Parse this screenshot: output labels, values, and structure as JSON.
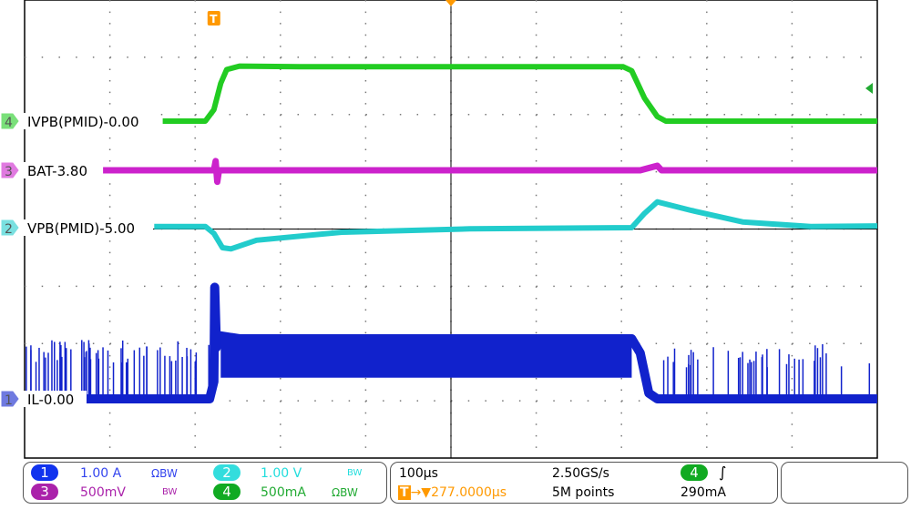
{
  "chart_data": {
    "type": "line",
    "time_unit": "µs",
    "xlim": [
      -222,
      778
    ],
    "x_divisions": 10,
    "y_divisions": 8,
    "grid": true,
    "trigger_time": 0,
    "series": [
      {
        "channel": "4",
        "name": "IVPB(PMID)",
        "label": "IVPB(PMID)-0.00",
        "unit": "mA",
        "scale_per_div": 500,
        "offset": 0,
        "color": "#22cc22",
        "points": [
          [
            -60,
            0
          ],
          [
            -10,
            0
          ],
          [
            0,
            100
          ],
          [
            8,
            330
          ],
          [
            15,
            450
          ],
          [
            30,
            480
          ],
          [
            100,
            475
          ],
          [
            300,
            475
          ],
          [
            480,
            475
          ],
          [
            490,
            440
          ],
          [
            505,
            200
          ],
          [
            520,
            40
          ],
          [
            530,
            0
          ],
          [
            778,
            0
          ]
        ]
      },
      {
        "channel": "3",
        "name": "BAT",
        "label": "BAT-3.80",
        "unit": "V",
        "scale_per_div": 0.5,
        "offset": 3.8,
        "color": "#cc22cc",
        "points": [
          [
            -130,
            3.8
          ],
          [
            0,
            3.8
          ],
          [
            2,
            3.88
          ],
          [
            4,
            3.7
          ],
          [
            6,
            3.8
          ],
          [
            500,
            3.8
          ],
          [
            520,
            3.84
          ],
          [
            525,
            3.8
          ],
          [
            778,
            3.8
          ]
        ]
      },
      {
        "channel": "2",
        "name": "VPB(PMID)",
        "label": "VPB(PMID)-5.00",
        "unit": "V",
        "scale_per_div": 1.0,
        "offset": 5.0,
        "color": "#22cccc",
        "points": [
          [
            -70,
            5.02
          ],
          [
            -10,
            5.02
          ],
          [
            0,
            4.9
          ],
          [
            10,
            4.65
          ],
          [
            20,
            4.63
          ],
          [
            50,
            4.78
          ],
          [
            150,
            4.92
          ],
          [
            300,
            4.98
          ],
          [
            490,
            5.0
          ],
          [
            505,
            5.25
          ],
          [
            520,
            5.45
          ],
          [
            560,
            5.3
          ],
          [
            620,
            5.1
          ],
          [
            700,
            5.02
          ],
          [
            778,
            5.03
          ]
        ]
      },
      {
        "channel": "1",
        "name": "IL",
        "label": "IL-0.00",
        "unit": "A",
        "scale_per_div": 1.0,
        "offset": 0,
        "color": "#1122cc",
        "points": [
          [
            -150,
            0
          ],
          [
            -5,
            0
          ],
          [
            0,
            0.3
          ],
          [
            1,
            1.95
          ],
          [
            3,
            0.9
          ],
          [
            8,
            1.1
          ],
          [
            30,
            1.05
          ],
          [
            300,
            1.05
          ],
          [
            490,
            1.05
          ],
          [
            500,
            0.8
          ],
          [
            510,
            0.1
          ],
          [
            520,
            0
          ],
          [
            778,
            0
          ]
        ]
      }
    ],
    "trigger_marker": "T",
    "trigger_level_marker_channel": "4"
  },
  "status": {
    "ch1": {
      "num": "1",
      "scale": "1.00 A",
      "flags": "ΩBW",
      "color": "#1133ee"
    },
    "ch2": {
      "num": "2",
      "scale": "1.00 V",
      "flags": "BW",
      "color": "#22dddd"
    },
    "ch3": {
      "num": "3",
      "scale": "500mV",
      "flags": "BW",
      "color": "#aa22aa"
    },
    "ch4": {
      "num": "4",
      "scale": "500mA",
      "flags": "ΩBW",
      "color": "#11aa22"
    },
    "timebase": "100µs",
    "trigger_delay": "277.0000µs",
    "sample_rate": "2.50GS/s",
    "record_length": "5M points",
    "trigger_source": "4",
    "trigger_slope": "rising-edge-icon",
    "trigger_level": "290mA"
  },
  "colors": {
    "trigger": "#ff9900"
  }
}
